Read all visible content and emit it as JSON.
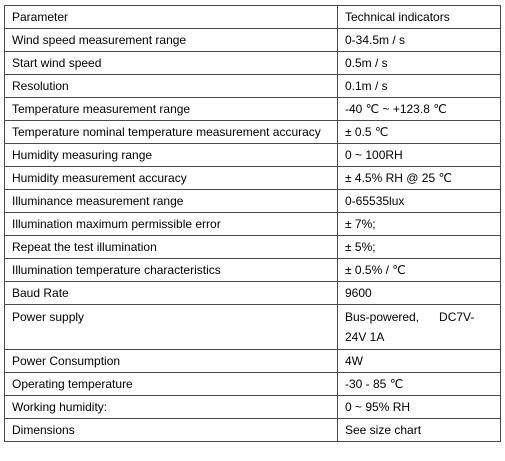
{
  "table": {
    "header": {
      "parameter": "Parameter",
      "value": "Technical indicators"
    },
    "rows": [
      {
        "parameter": "Wind speed measurement range",
        "value": "0-34.5m / s"
      },
      {
        "parameter": "Start wind speed",
        "value": "0.5m / s"
      },
      {
        "parameter": "Resolution",
        "value": "0.1m / s"
      },
      {
        "parameter": "Temperature measurement range",
        "value": "-40 ℃ ~ +123.8 ℃"
      },
      {
        "parameter": "Temperature nominal temperature measurement accuracy",
        "value": "± 0.5 ℃"
      },
      {
        "parameter": "Humidity measuring range",
        "value": "0 ~ 100RH"
      },
      {
        "parameter": "Humidity measurement accuracy",
        "value": "± 4.5% RH @ 25 ℃"
      },
      {
        "parameter": "Illuminance measurement range",
        "value": "0-65535lux"
      },
      {
        "parameter": "Illumination maximum permissible error",
        "value": "± 7%;"
      },
      {
        "parameter": "Repeat the test illumination",
        "value": "± 5%;"
      },
      {
        "parameter": "Illumination temperature characteristics",
        "value": "± 0.5% / ℃"
      },
      {
        "parameter": "Baud Rate",
        "value": "9600"
      },
      {
        "parameter": "Power supply",
        "value": "Bus-powered,      DC7V-24V 1A"
      },
      {
        "parameter": "Power Consumption",
        "value": "4W"
      },
      {
        "parameter": "Operating temperature",
        "value": "-30 - 85 ℃"
      },
      {
        "parameter": "Working humidity:",
        "value": "0 ~ 95% RH"
      },
      {
        "parameter": "Dimensions",
        "value": "See size chart"
      }
    ]
  }
}
